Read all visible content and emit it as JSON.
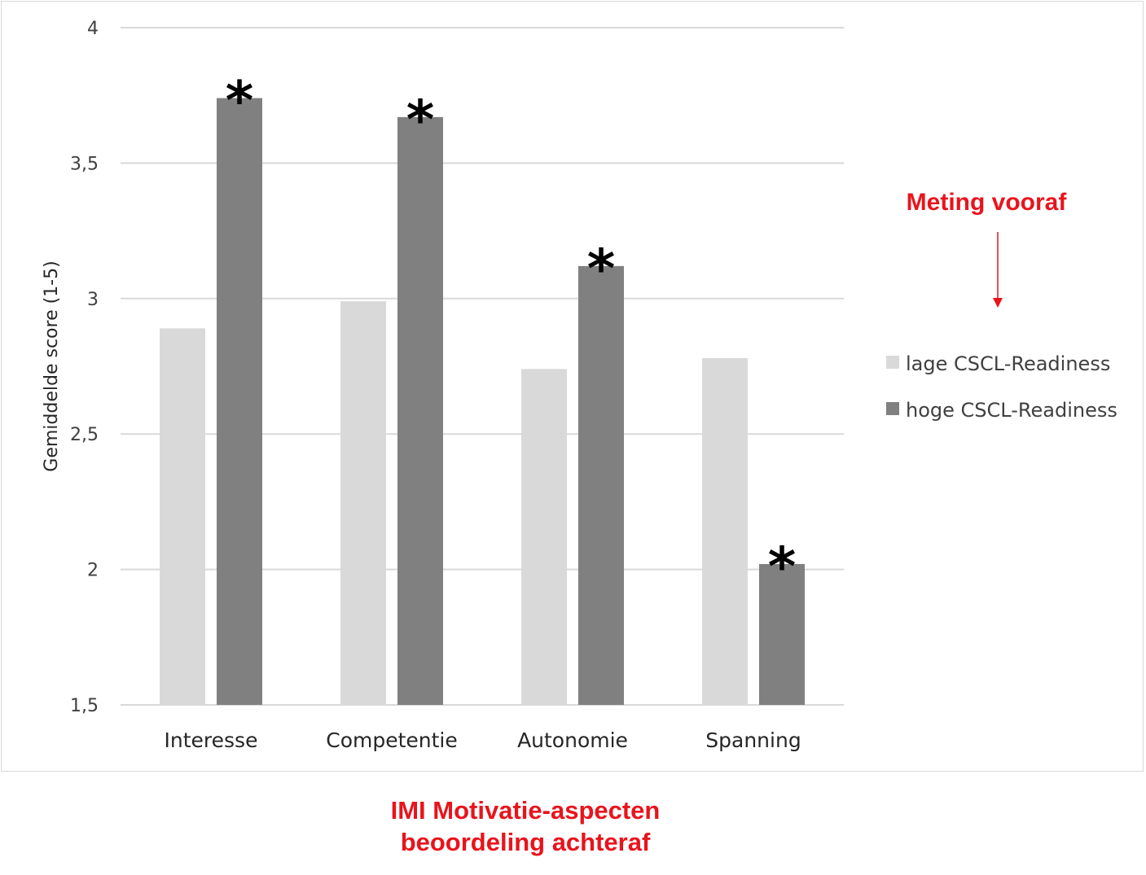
{
  "colors": {
    "lage": "#d9d9d9",
    "hoge": "#808080",
    "grid": "#d9d9d9",
    "accent": "#e8141c"
  },
  "annotations": {
    "meting": "Meting vooraf",
    "bottom_line1": "IMI Motivatie-aspecten",
    "bottom_line2": "beoordeling achteraf"
  },
  "chart_data": {
    "type": "bar",
    "categories": [
      "Interesse",
      "Competentie",
      "Autonomie",
      "Spanning"
    ],
    "series": [
      {
        "name": "lage CSCL-Readiness",
        "values": [
          2.89,
          2.99,
          2.74,
          2.78
        ]
      },
      {
        "name": "hoge CSCL-Readiness",
        "values": [
          3.74,
          3.67,
          3.12,
          2.02
        ]
      }
    ],
    "significance_marker": "*",
    "significant": [
      true,
      true,
      true,
      true
    ],
    "ylabel": "Gemiddelde score (1-5)",
    "xlabel": "",
    "ylim": [
      1.5,
      4
    ],
    "yticks": [
      1.5,
      2,
      2.5,
      3,
      3.5,
      4
    ],
    "ytick_labels": [
      "1,5",
      "2",
      "2,5",
      "3",
      "3,5",
      "4"
    ],
    "grid": true,
    "legend_position": "right"
  }
}
